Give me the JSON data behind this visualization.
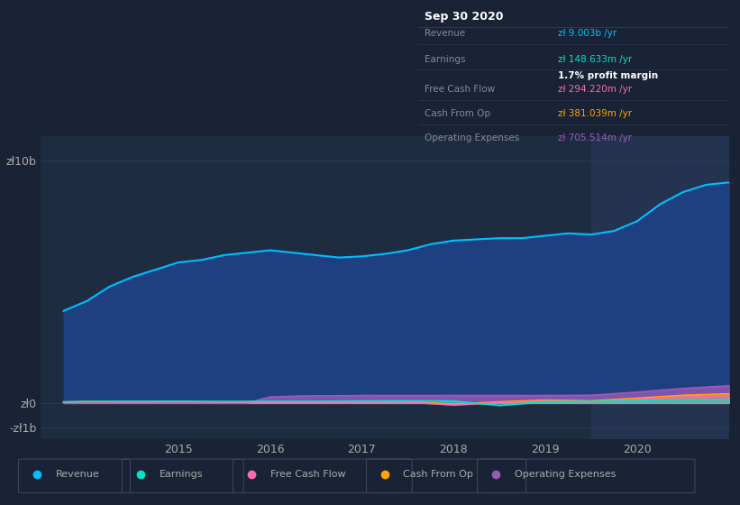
{
  "background_color": "#1a2235",
  "plot_bg_color": "#1e2c42",
  "highlight_bg_color": "#243450",
  "title_box": {
    "date": "Sep 30 2020",
    "revenue_val": "zł 9.003b",
    "earnings_val": "zł 148.633m",
    "profit_margin": "1.7%",
    "fcf_val": "zł 294.220m",
    "cashfromop_val": "zł 381.039m",
    "opex_val": "zł 705.514m"
  },
  "yticks": [
    "zł10b",
    "zł0",
    "-zł1b"
  ],
  "ytick_values": [
    10000000000.0,
    0,
    -1000000000.0
  ],
  "ylim": [
    -1500000000.0,
    11000000000.0
  ],
  "xlim_start": 2013.5,
  "xlim_end": 2021.0,
  "xtick_labels": [
    "2015",
    "2016",
    "2017",
    "2018",
    "2019",
    "2020"
  ],
  "xtick_positions": [
    2015,
    2016,
    2017,
    2018,
    2019,
    2020
  ],
  "legend": [
    {
      "label": "Revenue",
      "color": "#00bfff"
    },
    {
      "label": "Earnings",
      "color": "#00e5cc"
    },
    {
      "label": "Free Cash Flow",
      "color": "#ff69b4"
    },
    {
      "label": "Cash From Op",
      "color": "#ffa500"
    },
    {
      "label": "Operating Expenses",
      "color": "#9b59b6"
    }
  ],
  "revenue_data": {
    "x": [
      2013.75,
      2014.0,
      2014.25,
      2014.5,
      2014.75,
      2015.0,
      2015.25,
      2015.5,
      2015.75,
      2016.0,
      2016.25,
      2016.5,
      2016.75,
      2017.0,
      2017.25,
      2017.5,
      2017.75,
      2018.0,
      2018.25,
      2018.5,
      2018.75,
      2019.0,
      2019.25,
      2019.5,
      2019.75,
      2020.0,
      2020.25,
      2020.5,
      2020.75,
      2021.0
    ],
    "y": [
      3800000000.0,
      4200000000.0,
      4800000000.0,
      5200000000.0,
      5500000000.0,
      5800000000.0,
      5900000000.0,
      6100000000.0,
      6200000000.0,
      6300000000.0,
      6200000000.0,
      6100000000.0,
      6000000000.0,
      6050000000.0,
      6150000000.0,
      6300000000.0,
      6550000000.0,
      6700000000.0,
      6750000000.0,
      6800000000.0,
      6800000000.0,
      6900000000.0,
      7000000000.0,
      6950000000.0,
      7100000000.0,
      7500000000.0,
      8200000000.0,
      8700000000.0,
      9000000000.0,
      9100000000.0
    ]
  },
  "earnings_data": {
    "x": [
      2013.75,
      2014.0,
      2014.5,
      2015.0,
      2015.5,
      2016.0,
      2016.5,
      2017.0,
      2017.5,
      2018.0,
      2018.5,
      2019.0,
      2019.5,
      2020.0,
      2020.5,
      2021.0
    ],
    "y": [
      50000000.0,
      60000000.0,
      70000000.0,
      70000000.0,
      60000000.0,
      70000000.0,
      70000000.0,
      80000000.0,
      90000000.0,
      80000000.0,
      -100000000.0,
      50000000.0,
      70000000.0,
      100000000.0,
      130000000.0,
      150000000.0
    ]
  },
  "fcf_data": {
    "x": [
      2013.75,
      2014.0,
      2014.5,
      2015.0,
      2015.5,
      2016.0,
      2016.5,
      2017.0,
      2017.5,
      2018.0,
      2018.5,
      2019.0,
      2019.5,
      2020.0,
      2020.5,
      2021.0
    ],
    "y": [
      30000000.0,
      40000000.0,
      30000000.0,
      40000000.0,
      30000000.0,
      20000000.0,
      20000000.0,
      30000000.0,
      40000000.0,
      -80000000.0,
      20000000.0,
      80000000.0,
      50000000.0,
      150000000.0,
      250000000.0,
      290000000.0
    ]
  },
  "cashfromop_data": {
    "x": [
      2013.75,
      2014.0,
      2014.5,
      2015.0,
      2015.5,
      2016.0,
      2016.5,
      2017.0,
      2017.5,
      2018.0,
      2018.5,
      2019.0,
      2019.5,
      2020.0,
      2020.5,
      2021.0
    ],
    "y": [
      40000000.0,
      60000000.0,
      50000000.0,
      60000000.0,
      50000000.0,
      40000000.0,
      40000000.0,
      50000000.0,
      60000000.0,
      -50000000.0,
      50000000.0,
      120000000.0,
      90000000.0,
      200000000.0,
      320000000.0,
      380000000.0
    ]
  },
  "opex_data": {
    "x": [
      2013.75,
      2015.75,
      2016.0,
      2016.25,
      2016.5,
      2016.75,
      2017.0,
      2017.5,
      2018.0,
      2018.5,
      2019.0,
      2019.5,
      2020.0,
      2020.5,
      2021.0
    ],
    "y": [
      0.0,
      0.0,
      250000000.0,
      280000000.0,
      300000000.0,
      300000000.0,
      310000000.0,
      310000000.0,
      310000000.0,
      310000000.0,
      310000000.0,
      320000000.0,
      450000000.0,
      600000000.0,
      710000000.0
    ]
  },
  "highlight_x_start": 2019.5,
  "highlight_x_end": 2021.0,
  "revenue_fill_color": "#1e4080",
  "revenue_line_color": "#00bfff",
  "earnings_color": "#00e5cc",
  "fcf_color": "#ff69b4",
  "cashfromop_color": "#ffa500",
  "opex_color": "#9b59b6"
}
